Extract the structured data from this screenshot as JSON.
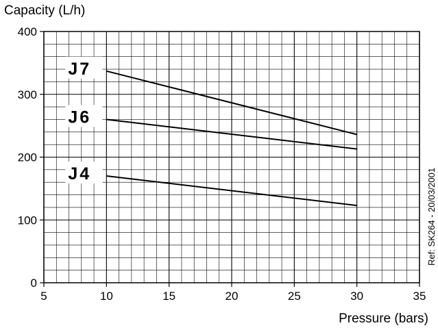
{
  "chart_data": {
    "type": "line",
    "ylabel": "Capacity (L/h)",
    "xlabel": "Pressure (bars)",
    "xlim": [
      5,
      35
    ],
    "ylim": [
      0,
      400
    ],
    "x_ticks": [
      5,
      10,
      15,
      20,
      25,
      30,
      35
    ],
    "y_ticks": [
      0,
      100,
      200,
      300,
      400
    ],
    "grid": true,
    "series": [
      {
        "name": "J7",
        "x": [
          10,
          30
        ],
        "values": [
          337,
          236
        ]
      },
      {
        "name": "J6",
        "x": [
          10,
          30
        ],
        "values": [
          260,
          213
        ]
      },
      {
        "name": "J4",
        "x": [
          10,
          30
        ],
        "values": [
          170,
          123
        ]
      }
    ],
    "annotation": "Ref: SK264 - 20/03/2001"
  }
}
